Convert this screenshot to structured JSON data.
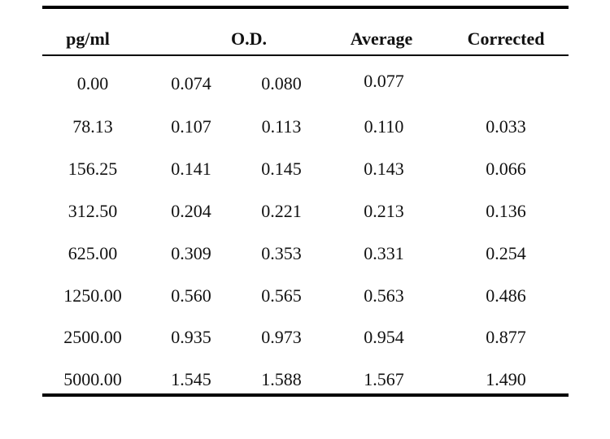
{
  "table": {
    "headers": {
      "concentration": "pg/ml",
      "od": "O.D.",
      "average": "Average",
      "corrected": "Corrected"
    },
    "rows": [
      {
        "conc": "0.00",
        "od1": "0.074",
        "od2": "0.080",
        "avg": "0.077",
        "corr": ""
      },
      {
        "conc": "78.13",
        "od1": "0.107",
        "od2": "0.113",
        "avg": "0.110",
        "corr": "0.033"
      },
      {
        "conc": "156.25",
        "od1": "0.141",
        "od2": "0.145",
        "avg": "0.143",
        "corr": "0.066"
      },
      {
        "conc": "312.50",
        "od1": "0.204",
        "od2": "0.221",
        "avg": "0.213",
        "corr": "0.136"
      },
      {
        "conc": "625.00",
        "od1": "0.309",
        "od2": "0.353",
        "avg": "0.331",
        "corr": "0.254"
      },
      {
        "conc": "1250.00",
        "od1": "0.560",
        "od2": "0.565",
        "avg": "0.563",
        "corr": "0.486"
      },
      {
        "conc": "2500.00",
        "od1": "0.935",
        "od2": "0.973",
        "avg": "0.954",
        "corr": "0.877"
      },
      {
        "conc": "5000.00",
        "od1": "1.545",
        "od2": "1.588",
        "avg": "1.567",
        "corr": "1.490"
      }
    ]
  }
}
